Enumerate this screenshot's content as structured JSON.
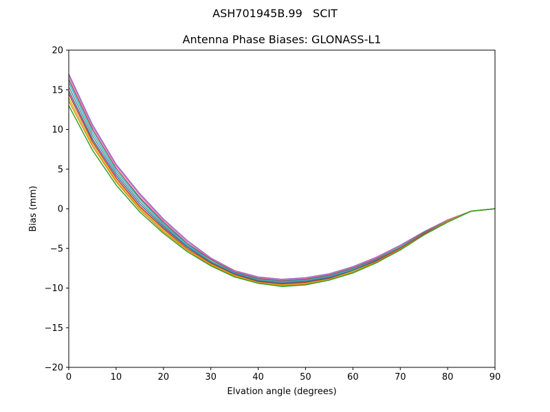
{
  "figure": {
    "suptitle": "ASH701945B.99   SCIT"
  },
  "chart_data": {
    "type": "line",
    "title": "Antenna Phase Biases: GLONASS-L1",
    "xlabel": "Elvation angle (degrees)",
    "ylabel": "Bias (mm)",
    "xlim": [
      0,
      90
    ],
    "ylim": [
      -20,
      20
    ],
    "xticks": [
      0,
      10,
      20,
      30,
      40,
      50,
      60,
      70,
      80,
      90
    ],
    "yticks": [
      -20,
      -15,
      -10,
      -5,
      0,
      5,
      10,
      15,
      20
    ],
    "xtick_labels": [
      "0",
      "10",
      "20",
      "30",
      "40",
      "50",
      "60",
      "70",
      "80",
      "90"
    ],
    "ytick_labels": [
      "−20",
      "−15",
      "−10",
      "−5",
      "0",
      "5",
      "10",
      "15",
      "20"
    ],
    "grid": false,
    "legend": "none",
    "x": [
      0,
      5,
      10,
      15,
      20,
      25,
      30,
      35,
      40,
      45,
      50,
      55,
      60,
      65,
      70,
      75,
      80,
      85,
      90
    ],
    "series": [
      {
        "color": "#9467bd",
        "values": [
          17.0,
          10.6,
          5.6,
          1.9,
          -1.3,
          -4.0,
          -6.2,
          -7.8,
          -8.6,
          -8.9,
          -8.7,
          -8.2,
          -7.3,
          -6.1,
          -4.6,
          -2.9,
          -1.4,
          -0.3,
          0.0
        ]
      },
      {
        "color": "#e377c2",
        "values": [
          16.7,
          10.3,
          5.4,
          1.7,
          -1.5,
          -4.2,
          -6.3,
          -7.9,
          -8.7,
          -9.0,
          -8.8,
          -8.3,
          -7.4,
          -6.2,
          -4.7,
          -3.0,
          -1.4,
          -0.3,
          0.0
        ]
      },
      {
        "color": "#8c564b",
        "values": [
          16.3,
          10.0,
          5.1,
          1.4,
          -1.7,
          -4.4,
          -6.4,
          -8.0,
          -8.8,
          -9.1,
          -8.9,
          -8.4,
          -7.5,
          -6.3,
          -4.8,
          -3.0,
          -1.5,
          -0.3,
          0.0
        ]
      },
      {
        "color": "#17becf",
        "values": [
          15.9,
          9.6,
          4.8,
          1.2,
          -1.9,
          -4.5,
          -6.6,
          -8.1,
          -8.9,
          -9.2,
          -9.0,
          -8.5,
          -7.6,
          -6.4,
          -4.8,
          -3.1,
          -1.5,
          -0.3,
          0.0
        ]
      },
      {
        "color": "#7f7f7f",
        "values": [
          15.4,
          9.2,
          4.5,
          0.9,
          -2.1,
          -4.7,
          -6.7,
          -8.2,
          -9.0,
          -9.3,
          -9.1,
          -8.6,
          -7.7,
          -6.4,
          -4.9,
          -3.1,
          -1.5,
          -0.3,
          0.0
        ]
      },
      {
        "color": "#1f77b4",
        "values": [
          14.9,
          8.8,
          4.2,
          0.6,
          -2.3,
          -4.8,
          -6.8,
          -8.2,
          -9.1,
          -9.4,
          -9.2,
          -8.7,
          -7.8,
          -6.5,
          -5.0,
          -3.2,
          -1.6,
          -0.3,
          0.0
        ]
      },
      {
        "color": "#d62728",
        "values": [
          14.5,
          8.5,
          3.9,
          0.3,
          -2.5,
          -5.0,
          -6.9,
          -8.3,
          -9.2,
          -9.5,
          -9.3,
          -8.8,
          -7.9,
          -6.6,
          -5.0,
          -3.2,
          -1.6,
          -0.3,
          0.0
        ]
      },
      {
        "color": "#bcbd22",
        "values": [
          14.0,
          8.2,
          3.6,
          0.1,
          -2.7,
          -5.1,
          -7.0,
          -8.4,
          -9.3,
          -9.6,
          -9.4,
          -8.9,
          -7.9,
          -6.7,
          -5.1,
          -3.3,
          -1.6,
          -0.3,
          0.0
        ]
      },
      {
        "color": "#ff7f0e",
        "values": [
          13.6,
          7.9,
          3.4,
          -0.1,
          -2.9,
          -5.2,
          -7.1,
          -8.5,
          -9.4,
          -9.7,
          -9.5,
          -9.0,
          -8.0,
          -6.7,
          -5.1,
          -3.3,
          -1.6,
          -0.3,
          0.0
        ]
      },
      {
        "color": "#2ca02c",
        "values": [
          13.0,
          7.4,
          3.0,
          -0.4,
          -3.1,
          -5.4,
          -7.2,
          -8.6,
          -9.4,
          -9.8,
          -9.6,
          -9.0,
          -8.1,
          -6.8,
          -5.2,
          -3.3,
          -1.7,
          -0.3,
          0.0
        ]
      }
    ]
  }
}
